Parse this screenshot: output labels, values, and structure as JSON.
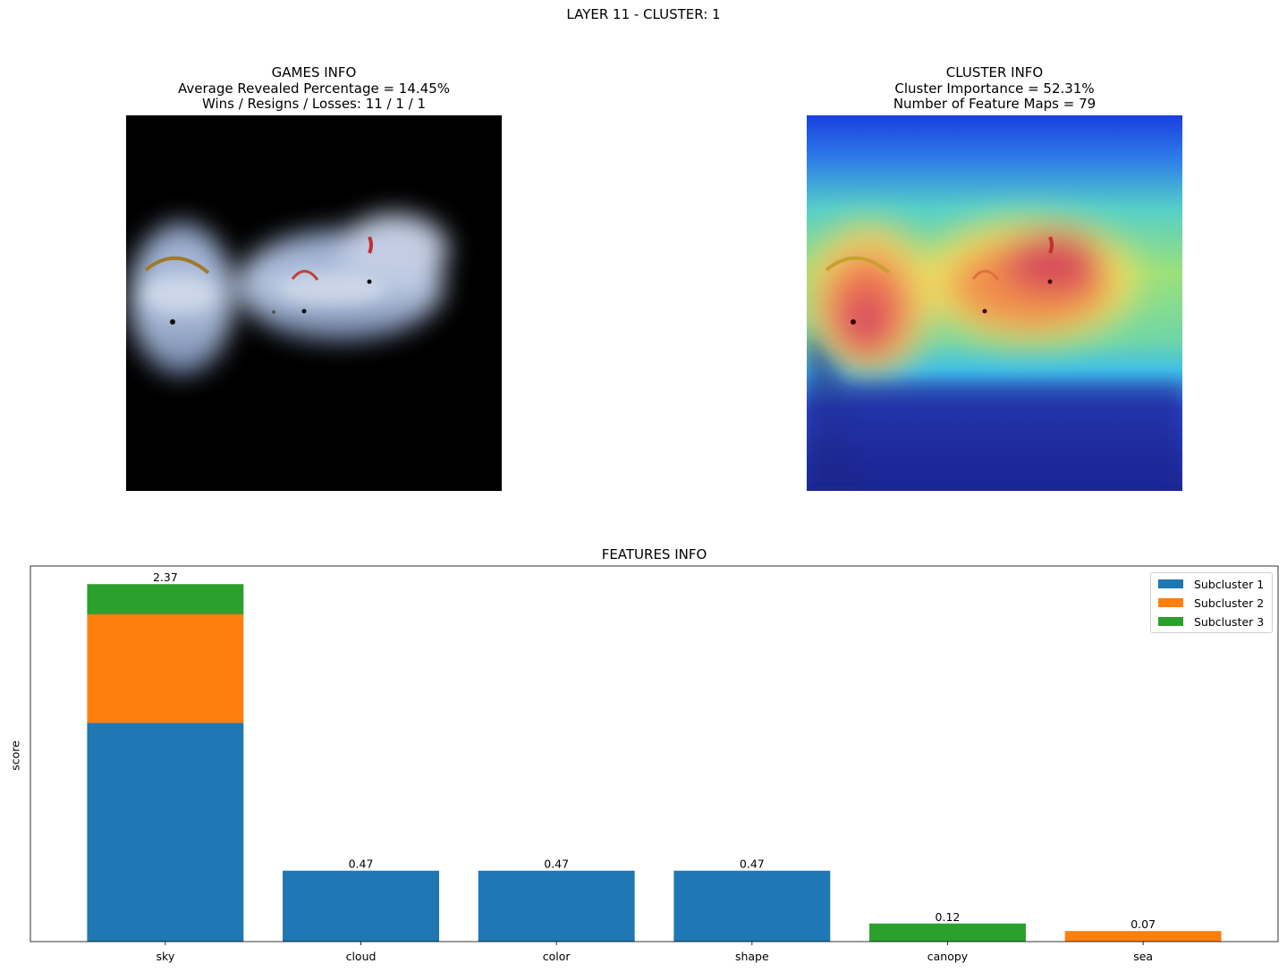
{
  "suptitle": "LAYER 11 - CLUSTER: 1",
  "games_info": {
    "title": "GAMES INFO",
    "line1": "Average Revealed Percentage = 14.45%",
    "line2": "Wins / Resigns / Losses: 11 / 1 / 1"
  },
  "cluster_info": {
    "title": "CLUSTER INFO",
    "line1": "Cluster Importance = 52.31%",
    "line2": "Number of Feature Maps = 79"
  },
  "colors": {
    "subcluster_1": "#1f77b4",
    "subcluster_2": "#ff7f0e",
    "subcluster_3": "#2ca02c"
  },
  "chart_data": {
    "type": "bar",
    "title": "FEATURES INFO",
    "xlabel": "",
    "ylabel": "score",
    "stacked": true,
    "categories": [
      "sky",
      "cloud",
      "color",
      "shape",
      "canopy",
      "sea"
    ],
    "series": [
      {
        "name": "Subcluster 1",
        "values": [
          1.45,
          0.47,
          0.47,
          0.47,
          0,
          0
        ]
      },
      {
        "name": "Subcluster 2",
        "values": [
          0.72,
          0,
          0,
          0,
          0,
          0.07
        ]
      },
      {
        "name": "Subcluster 3",
        "values": [
          0.2,
          0,
          0,
          0,
          0.12,
          0
        ]
      }
    ],
    "totals": [
      "2.37",
      "0.47",
      "0.47",
      "0.47",
      "0.12",
      "0.07"
    ],
    "ylim": [
      0,
      2.49
    ],
    "grid": false,
    "legend_position": "top-right",
    "y_tick_labels_shown": false
  }
}
